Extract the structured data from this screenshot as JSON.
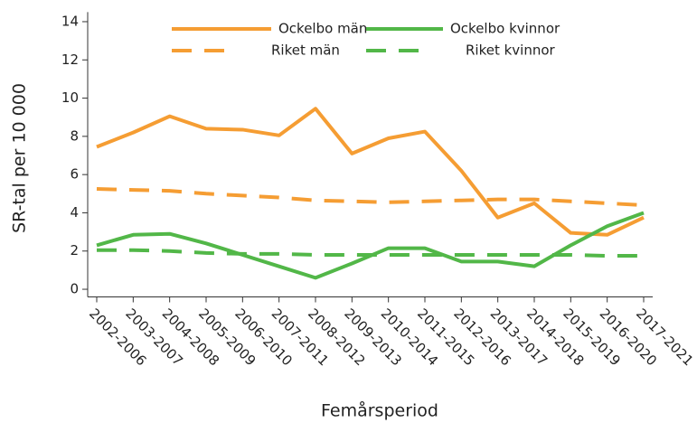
{
  "chart_data": {
    "type": "line",
    "x_label": "Femårsperiod",
    "y_label": "SR-tal per 10 000",
    "categories": [
      "2002-2006",
      "2003-2007",
      "2004-2008",
      "2005-2009",
      "2006-2010",
      "2007-2011",
      "2008-2012",
      "2009-2013",
      "2010-2014",
      "2011-2015",
      "2012-2016",
      "2013-2017",
      "2014-2018",
      "2015-2019",
      "2016-2020",
      "2017-2021"
    ],
    "series": [
      {
        "name": "Ockelbo män",
        "color": "#f59d33",
        "dashed": false,
        "values": [
          7.45,
          8.2,
          9.05,
          8.4,
          8.35,
          8.05,
          9.45,
          7.1,
          7.9,
          8.25,
          6.2,
          3.75,
          4.5,
          2.95,
          2.85,
          3.75
        ]
      },
      {
        "name": "Ockelbo kvinnor",
        "color": "#52b748",
        "dashed": false,
        "values": [
          2.3,
          2.85,
          2.9,
          2.4,
          1.8,
          1.2,
          0.6,
          1.35,
          2.15,
          2.15,
          1.45,
          1.45,
          1.2,
          2.3,
          3.3,
          4.0
        ]
      },
      {
        "name": "Riket män",
        "color": "#f59d33",
        "dashed": true,
        "values": [
          5.25,
          5.2,
          5.15,
          5.0,
          4.9,
          4.8,
          4.65,
          4.6,
          4.55,
          4.6,
          4.65,
          4.7,
          4.7,
          4.6,
          4.5,
          4.4
        ]
      },
      {
        "name": "Riket kvinnor",
        "color": "#52b748",
        "dashed": true,
        "values": [
          2.05,
          2.05,
          2.0,
          1.9,
          1.85,
          1.85,
          1.8,
          1.8,
          1.8,
          1.8,
          1.8,
          1.8,
          1.8,
          1.8,
          1.75,
          1.75
        ]
      }
    ],
    "ylim": [
      -0.4,
      14.5
    ],
    "yticks": [
      0,
      2,
      4,
      6,
      8,
      10,
      12,
      14
    ],
    "grid": false,
    "legend": "top"
  }
}
